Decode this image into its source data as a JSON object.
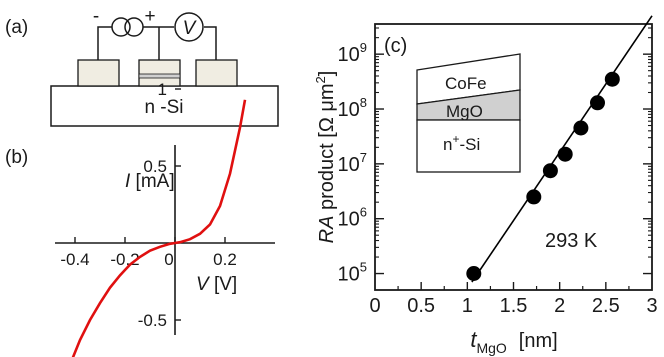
{
  "panel_a": {
    "label": "(a)",
    "substrate_label": "n -Si",
    "minus_sign": "-",
    "plus_sign": "+",
    "voltmeter_symbol": "V"
  },
  "panel_b": {
    "label": "(b)",
    "y_axis_italic": "I",
    "y_axis_unit": " [mA]",
    "x_axis_italic": "V",
    "x_axis_unit": " [V]"
  },
  "panel_c": {
    "label": "(c)",
    "inset_layers": {
      "top": "CoFe",
      "middle": "MgO",
      "bottom_base": "n",
      "bottom_sup": "+",
      "bottom_rest": "-Si"
    },
    "temperature_annotation": "293 K"
  },
  "colors": {
    "iv_curve": "#e01010",
    "mgo_layer": "#d0d0d0",
    "metal_pad": "#f0ede2",
    "fit_line": "#000000",
    "marker": "#000000"
  },
  "chart_data": [
    {
      "type": "line",
      "panel": "(b)",
      "xlabel": "V [V]",
      "ylabel": "I [mA]",
      "xlim": [
        -0.45,
        0.35
      ],
      "ylim": [
        -0.85,
        1.0
      ],
      "x_ticks": [
        -0.4,
        -0.2,
        0,
        0.2
      ],
      "x_tick_labels": [
        "-0.4",
        "-0.2",
        "0",
        "0.2"
      ],
      "y_ticks": [
        -0.5,
        0.5,
        1
      ],
      "y_tick_labels": [
        "-0.5",
        "0.5",
        "1"
      ],
      "series": [
        {
          "x": [
            -0.42,
            -0.38,
            -0.34,
            -0.3,
            -0.26,
            -0.22,
            -0.18,
            -0.14,
            -0.1,
            -0.06,
            -0.02,
            0.0,
            0.02,
            0.06,
            0.1,
            0.14,
            0.18,
            0.22,
            0.26,
            0.28
          ],
          "y": [
            -0.79,
            -0.63,
            -0.5,
            -0.39,
            -0.29,
            -0.21,
            -0.14,
            -0.09,
            -0.05,
            -0.025,
            -0.005,
            0.0,
            0.005,
            0.025,
            0.06,
            0.12,
            0.24,
            0.45,
            0.75,
            0.93
          ]
        }
      ],
      "grid": false
    },
    {
      "type": "scatter",
      "panel": "(c)",
      "xlabel": "t_MgO [nm]",
      "ylabel": "RA product [Ω μm²]",
      "x_label_parts": {
        "base": "t",
        "sub": "MgO",
        "unit": "[nm]"
      },
      "y_label_parts": {
        "italic": "RA",
        "text": " product  [Ω μm",
        "sup": "2",
        "close": "]"
      },
      "xlim": [
        0,
        3
      ],
      "ylim_log10": [
        4.7,
        9.55
      ],
      "log_y": true,
      "x_ticks": [
        0,
        0.5,
        1,
        1.5,
        2,
        2.5,
        3
      ],
      "x_tick_labels": [
        "0",
        "0.5",
        "1",
        "1.5",
        "2",
        "2.5",
        "3"
      ],
      "y_ticks": [
        5,
        6,
        7,
        8,
        9
      ],
      "y_tick_labels": [
        {
          "base": "10",
          "exp": "5"
        },
        {
          "base": "10",
          "exp": "6"
        },
        {
          "base": "10",
          "exp": "7"
        },
        {
          "base": "10",
          "exp": "8"
        },
        {
          "base": "10",
          "exp": "9"
        }
      ],
      "series": [
        {
          "markers": true,
          "x": [
            1.07,
            1.72,
            1.9,
            2.06,
            2.23,
            2.41,
            2.57
          ],
          "y": [
            100000,
            2500000,
            7500000,
            15000000,
            45000000,
            130000000,
            350000000
          ]
        }
      ],
      "fit_line": {
        "x": [
          1.05,
          3.0
        ],
        "y": [
          70000,
          5000000000
        ]
      },
      "grid": false
    }
  ]
}
